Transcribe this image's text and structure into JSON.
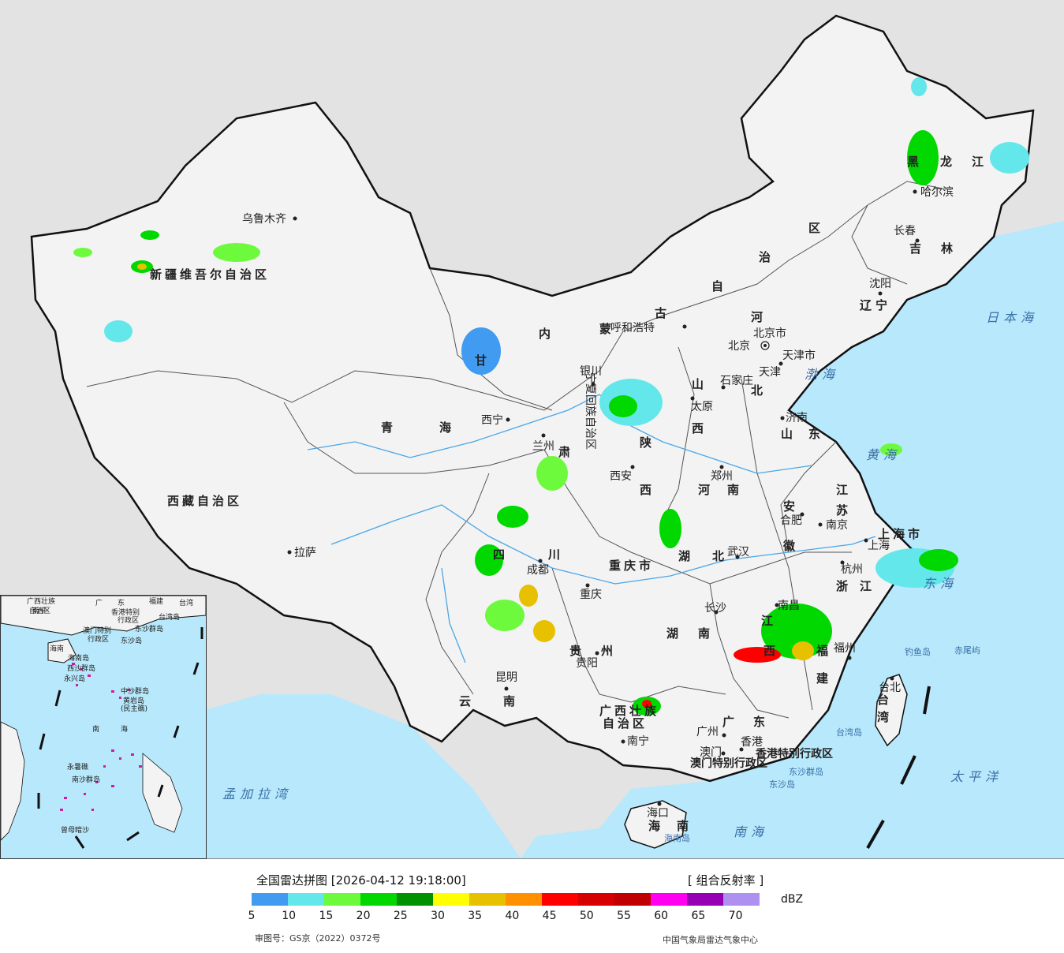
{
  "map": {
    "colors": {
      "land": "#f3f3f3",
      "sea": "#b7e8fb",
      "outside": "#e3e3e3",
      "border": "#111111",
      "river": "#4aa6e6"
    },
    "regions": [
      {
        "name": "新疆维吾尔自治区"
      },
      {
        "name": "西藏自治区"
      },
      {
        "name": "青"
      },
      {
        "name": "海"
      },
      {
        "name": "甘"
      },
      {
        "name": "肃"
      },
      {
        "name": "内"
      },
      {
        "name": "蒙"
      },
      {
        "name": "古"
      },
      {
        "name": "自"
      },
      {
        "name": "治"
      },
      {
        "name": "区"
      },
      {
        "name": "黑"
      },
      {
        "name": "龙"
      },
      {
        "name": "江"
      },
      {
        "name": "吉"
      },
      {
        "name": "林"
      },
      {
        "name": "辽"
      },
      {
        "name": "宁"
      },
      {
        "name": "河"
      },
      {
        "name": "北"
      },
      {
        "name": "山"
      },
      {
        "name": "西"
      },
      {
        "name": "山"
      },
      {
        "name": "东"
      },
      {
        "name": "陕"
      },
      {
        "name": "西"
      },
      {
        "name": "河"
      },
      {
        "name": "南"
      },
      {
        "name": "江"
      },
      {
        "name": "苏"
      },
      {
        "name": "安"
      },
      {
        "name": "徽"
      },
      {
        "name": "上海市"
      },
      {
        "name": "浙"
      },
      {
        "name": "江"
      },
      {
        "name": "湖"
      },
      {
        "name": "北"
      },
      {
        "name": "湖"
      },
      {
        "name": "南"
      },
      {
        "name": "江"
      },
      {
        "name": "西"
      },
      {
        "name": "福"
      },
      {
        "name": "建"
      },
      {
        "name": "四"
      },
      {
        "name": "川"
      },
      {
        "name": "重庆市"
      },
      {
        "name": "贵"
      },
      {
        "name": "州"
      },
      {
        "name": "云"
      },
      {
        "name": "南"
      },
      {
        "name": "广西壮族"
      },
      {
        "name": "自治区"
      },
      {
        "name": "广"
      },
      {
        "name": "东"
      },
      {
        "name": "海"
      },
      {
        "name": "南"
      },
      {
        "name": "台"
      },
      {
        "name": "湾"
      },
      {
        "name": "香港特别行政区"
      },
      {
        "name": "澳门特别行政区"
      },
      {
        "name": "宁夏回族自治区"
      },
      {
        "name": "北京市"
      },
      {
        "name": "天津市"
      }
    ],
    "cities": [
      {
        "name": "乌鲁木齐"
      },
      {
        "name": "拉萨"
      },
      {
        "name": "西宁"
      },
      {
        "name": "兰州"
      },
      {
        "name": "银川"
      },
      {
        "name": "呼和浩特"
      },
      {
        "name": "哈尔滨"
      },
      {
        "name": "长春"
      },
      {
        "name": "沈阳"
      },
      {
        "name": "北京"
      },
      {
        "name": "天津"
      },
      {
        "name": "石家庄"
      },
      {
        "name": "太原"
      },
      {
        "name": "济南"
      },
      {
        "name": "郑州"
      },
      {
        "name": "西安"
      },
      {
        "name": "合肥"
      },
      {
        "name": "南京"
      },
      {
        "name": "上海"
      },
      {
        "name": "杭州"
      },
      {
        "name": "武汉"
      },
      {
        "name": "成都"
      },
      {
        "name": "重庆"
      },
      {
        "name": "长沙"
      },
      {
        "name": "南昌"
      },
      {
        "name": "福州"
      },
      {
        "name": "贵阳"
      },
      {
        "name": "昆明"
      },
      {
        "name": "南宁"
      },
      {
        "name": "广州"
      },
      {
        "name": "澳门"
      },
      {
        "name": "香港"
      },
      {
        "name": "海口"
      },
      {
        "name": "台北"
      }
    ],
    "seas": [
      "日本海",
      "渤海",
      "黄海",
      "东海",
      "南海",
      "太平洋",
      "孟加拉湾"
    ],
    "islands": [
      "钓鱼岛",
      "赤尾屿",
      "台湾岛",
      "东沙群岛",
      "东沙岛",
      "海南岛"
    ],
    "inset": {
      "labels": [
        "广西壮族",
        "自治区",
        "广",
        "东",
        "福建",
        "台湾",
        "香港特别",
        "行政区",
        "台湾岛",
        "澳门特别",
        "行政区",
        "东沙群岛",
        "东沙岛",
        "海南",
        "海南岛",
        "西沙群岛",
        "永兴岛",
        "中沙群岛",
        "黄岩岛",
        "(民主礁)",
        "南",
        "海",
        "永暑礁",
        "南沙群岛",
        "曾母暗沙",
        "南宁"
      ]
    }
  },
  "legend": {
    "title": "全国雷达拼图 [2026-04-12 19:18:00]",
    "product": "[ 组合反射率 ]",
    "unit": "dBZ",
    "bins": [
      {
        "color": "#419bf0"
      },
      {
        "color": "#64e7eb"
      },
      {
        "color": "#6dfa3d"
      },
      {
        "color": "#00d800"
      },
      {
        "color": "#019000"
      },
      {
        "color": "#ffff00"
      },
      {
        "color": "#e7c000"
      },
      {
        "color": "#ff9000"
      },
      {
        "color": "#ff0000"
      },
      {
        "color": "#d60000"
      },
      {
        "color": "#c00000"
      },
      {
        "color": "#ff00f0"
      },
      {
        "color": "#9600b4"
      },
      {
        "color": "#ad90f0"
      }
    ],
    "ticks": [
      "5",
      "10",
      "15",
      "20",
      "25",
      "30",
      "35",
      "40",
      "45",
      "50",
      "55",
      "60",
      "65",
      "70"
    ],
    "approval": "审图号：GS京（2022）0372号",
    "agency": "中国气象局雷达气象中心"
  }
}
